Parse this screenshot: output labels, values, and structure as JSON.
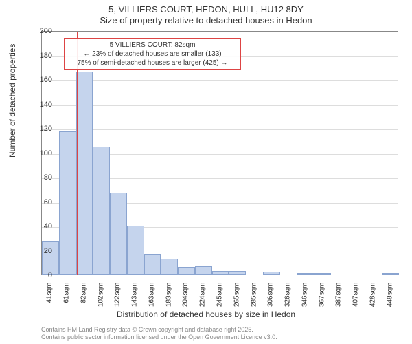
{
  "chart": {
    "type": "histogram",
    "title_line1": "5, VILLIERS COURT, HEDON, HULL, HU12 8DY",
    "title_line2": "Size of property relative to detached houses in Hedon",
    "y_axis_label": "Number of detached properties",
    "x_axis_label": "Distribution of detached houses by size in Hedon",
    "ylim": [
      0,
      200
    ],
    "ytick_step": 20,
    "y_ticks": [
      0,
      20,
      40,
      60,
      80,
      100,
      120,
      140,
      160,
      180,
      200
    ],
    "x_tick_labels": [
      "41sqm",
      "61sqm",
      "82sqm",
      "102sqm",
      "122sqm",
      "143sqm",
      "163sqm",
      "183sqm",
      "204sqm",
      "224sqm",
      "245sqm",
      "265sqm",
      "285sqm",
      "306sqm",
      "326sqm",
      "346sqm",
      "367sqm",
      "387sqm",
      "407sqm",
      "428sqm",
      "448sqm"
    ],
    "bars": [
      27,
      117,
      166,
      105,
      67,
      40,
      17,
      13,
      6,
      7,
      3,
      3,
      0,
      2,
      0,
      1,
      1,
      0,
      0,
      0,
      1
    ],
    "bar_fill": "#c5d4ed",
    "bar_border": "#8aa4d0",
    "grid_color": "#dddddd",
    "background_color": "#ffffff",
    "reference_line": {
      "x_index": 2.05,
      "color": "#d44"
    },
    "callout": {
      "line1": "5 VILLIERS COURT: 82sqm",
      "line2": "← 23% of detached houses are smaller (133)",
      "line3": "75% of semi-detached houses are larger (425) →",
      "border_color": "#d44",
      "top_value": 195,
      "height_value": 30
    },
    "footer_line1": "Contains HM Land Registry data © Crown copyright and database right 2025.",
    "footer_line2": "Contains public sector information licensed under the Open Government Licence v3.0.",
    "title_fontsize": 13,
    "label_fontsize": 12,
    "tick_fontsize": 11
  }
}
